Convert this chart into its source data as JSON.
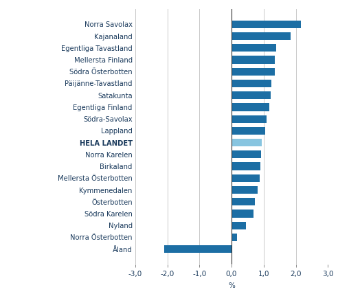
{
  "categories": [
    "Norra Savolax",
    "Kajanaland",
    "Egentliga Tavastland",
    "Mellersta Finland",
    "Södra Österbotten",
    "Päijänne-Tavastland",
    "Satakunta",
    "Egentliga Finland",
    "Södra-Savolax",
    "Lappland",
    "HELA LANDET",
    "Norra Karelen",
    "Birkaland",
    "Mellersta Österbotten",
    "Kymmenedalen",
    "Österbotten",
    "Södra Karelen",
    "Nyland",
    "Norra Österbotten",
    "Åland"
  ],
  "values": [
    2.15,
    1.85,
    1.4,
    1.35,
    1.35,
    1.25,
    1.22,
    1.18,
    1.1,
    1.05,
    0.95,
    0.92,
    0.9,
    0.88,
    0.82,
    0.72,
    0.68,
    0.45,
    0.18,
    -2.1
  ],
  "bar_colors": [
    "#1c6ea4",
    "#1c6ea4",
    "#1c6ea4",
    "#1c6ea4",
    "#1c6ea4",
    "#1c6ea4",
    "#1c6ea4",
    "#1c6ea4",
    "#1c6ea4",
    "#1c6ea4",
    "#88c5e0",
    "#1c6ea4",
    "#1c6ea4",
    "#1c6ea4",
    "#1c6ea4",
    "#1c6ea4",
    "#1c6ea4",
    "#1c6ea4",
    "#1c6ea4",
    "#1c6ea4"
  ],
  "bold_labels": [
    "HELA LANDET"
  ],
  "label_color": "#1a3a5c",
  "xlabel": "%",
  "xlim": [
    -3.0,
    3.0
  ],
  "xticks": [
    -3.0,
    -2.0,
    -1.0,
    0.0,
    1.0,
    2.0,
    3.0
  ],
  "xtick_labels": [
    "-3,0",
    "-2,0",
    "-1,0",
    "0,0",
    "1,0",
    "2,0",
    "3,0"
  ],
  "background_color": "#ffffff",
  "grid_color": "#c8c8c8",
  "label_fontsize": 7.2,
  "tick_fontsize": 7.5
}
